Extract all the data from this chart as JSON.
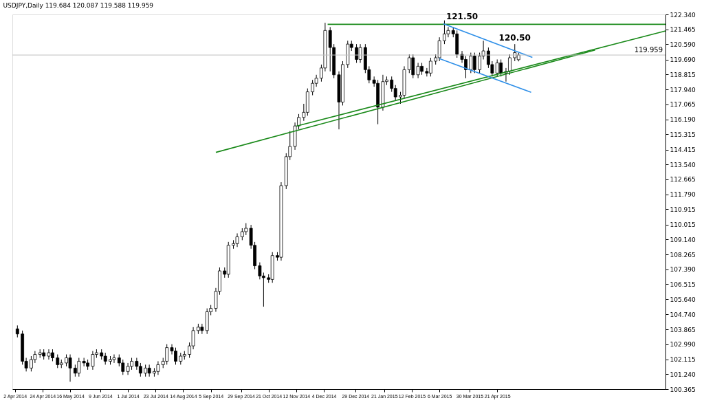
{
  "chart_data": {
    "type": "candlestick",
    "title": "USDJPY,Daily  119.684 120.087 119.588 119.959",
    "x": [
      "2014-04-04",
      "2014-04-08",
      "2014-04-11",
      "2014-04-15",
      "2014-04-18",
      "2014-04-22",
      "2014-04-25",
      "2014-04-29",
      "2014-05-02",
      "2014-05-06",
      "2014-05-09",
      "2014-05-13",
      "2014-05-16",
      "2014-05-20",
      "2014-05-23",
      "2014-05-27",
      "2014-05-30",
      "2014-06-03",
      "2014-06-06",
      "2014-06-10",
      "2014-06-13",
      "2014-06-17",
      "2014-06-20",
      "2014-06-24",
      "2014-06-27",
      "2014-07-01",
      "2014-07-04",
      "2014-07-08",
      "2014-07-11",
      "2014-07-15",
      "2014-07-18",
      "2014-07-22",
      "2014-07-25",
      "2014-07-29",
      "2014-08-01",
      "2014-08-05",
      "2014-08-08",
      "2014-08-12",
      "2014-08-15",
      "2014-08-19",
      "2014-08-22",
      "2014-08-26",
      "2014-08-29",
      "2014-09-02",
      "2014-09-05",
      "2014-09-09",
      "2014-09-12",
      "2014-09-16",
      "2014-09-19",
      "2014-09-23",
      "2014-09-26",
      "2014-09-30",
      "2014-10-03",
      "2014-10-07",
      "2014-10-10",
      "2014-10-14",
      "2014-10-17",
      "2014-10-21",
      "2014-10-24",
      "2014-10-28",
      "2014-10-31",
      "2014-11-04",
      "2014-11-07",
      "2014-11-11",
      "2014-11-14",
      "2014-11-18",
      "2014-11-21",
      "2014-11-25",
      "2014-11-28",
      "2014-12-02",
      "2014-12-05",
      "2014-12-09",
      "2014-12-12",
      "2014-12-16",
      "2014-12-19",
      "2014-12-23",
      "2014-12-26",
      "2014-12-30",
      "2015-01-02",
      "2015-01-06",
      "2015-01-09",
      "2015-01-13",
      "2015-01-16",
      "2015-01-20",
      "2015-01-23",
      "2015-01-27",
      "2015-01-30",
      "2015-02-03",
      "2015-02-06",
      "2015-02-10",
      "2015-02-13",
      "2015-02-17",
      "2015-02-20",
      "2015-02-24",
      "2015-02-27",
      "2015-03-03",
      "2015-03-06",
      "2015-03-10",
      "2015-03-13",
      "2015-03-17",
      "2015-03-20",
      "2015-03-24",
      "2015-03-27",
      "2015-03-31",
      "2015-04-03",
      "2015-04-07",
      "2015-04-10",
      "2015-04-14",
      "2015-04-17",
      "2015-04-21",
      "2015-04-24",
      "2015-04-28",
      "2015-05-01",
      "2015-05-05",
      "2015-05-08"
    ],
    "ohlc": [
      [
        103.9,
        104.1,
        103.4,
        103.6
      ],
      [
        103.6,
        103.8,
        101.8,
        102.0
      ],
      [
        102.0,
        102.2,
        101.4,
        101.6
      ],
      [
        101.6,
        102.3,
        101.4,
        102.1
      ],
      [
        102.1,
        102.6,
        101.9,
        102.4
      ],
      [
        102.4,
        102.7,
        102.2,
        102.5
      ],
      [
        102.5,
        102.7,
        102.1,
        102.3
      ],
      [
        102.3,
        102.7,
        102.1,
        102.5
      ],
      [
        102.5,
        102.7,
        102.0,
        102.2
      ],
      [
        102.2,
        102.4,
        101.6,
        101.8
      ],
      [
        101.8,
        102.1,
        101.6,
        101.9
      ],
      [
        101.9,
        102.4,
        101.7,
        102.2
      ],
      [
        102.2,
        102.4,
        100.8,
        101.6
      ],
      [
        101.6,
        101.8,
        101.1,
        101.3
      ],
      [
        101.3,
        102.2,
        101.1,
        102.0
      ],
      [
        102.0,
        102.2,
        101.7,
        101.9
      ],
      [
        101.9,
        102.1,
        101.5,
        101.7
      ],
      [
        101.7,
        102.6,
        101.5,
        102.4
      ],
      [
        102.4,
        102.7,
        102.2,
        102.5
      ],
      [
        102.5,
        102.7,
        102.1,
        102.3
      ],
      [
        102.3,
        102.5,
        101.8,
        102.0
      ],
      [
        102.0,
        102.3,
        101.8,
        102.1
      ],
      [
        102.1,
        102.4,
        101.9,
        102.2
      ],
      [
        102.2,
        102.4,
        101.7,
        101.9
      ],
      [
        101.9,
        102.1,
        101.2,
        101.4
      ],
      [
        101.4,
        101.9,
        101.2,
        101.7
      ],
      [
        101.7,
        102.2,
        101.5,
        102.0
      ],
      [
        102.0,
        102.2,
        101.5,
        101.7
      ],
      [
        101.7,
        101.9,
        101.1,
        101.3
      ],
      [
        101.3,
        101.8,
        101.1,
        101.6
      ],
      [
        101.6,
        101.8,
        101.1,
        101.3
      ],
      [
        101.3,
        101.6,
        101.1,
        101.4
      ],
      [
        101.4,
        102.0,
        101.2,
        101.8
      ],
      [
        101.8,
        102.2,
        101.6,
        102.0
      ],
      [
        102.0,
        103.0,
        101.8,
        102.8
      ],
      [
        102.8,
        103.0,
        102.4,
        102.6
      ],
      [
        102.6,
        102.8,
        101.8,
        102.0
      ],
      [
        102.0,
        102.5,
        101.8,
        102.3
      ],
      [
        102.3,
        102.6,
        102.1,
        102.4
      ],
      [
        102.4,
        103.1,
        102.2,
        102.9
      ],
      [
        102.9,
        104.0,
        102.7,
        103.8
      ],
      [
        103.8,
        104.2,
        103.6,
        104.0
      ],
      [
        104.0,
        104.2,
        103.6,
        103.8
      ],
      [
        103.8,
        105.1,
        103.6,
        104.9
      ],
      [
        104.9,
        105.3,
        104.7,
        105.1
      ],
      [
        105.1,
        106.3,
        104.9,
        106.1
      ],
      [
        106.1,
        107.5,
        105.9,
        107.3
      ],
      [
        107.3,
        107.5,
        106.9,
        107.1
      ],
      [
        107.1,
        109.0,
        106.9,
        108.8
      ],
      [
        108.8,
        109.1,
        108.6,
        108.9
      ],
      [
        108.9,
        109.5,
        108.7,
        109.3
      ],
      [
        109.3,
        109.8,
        109.1,
        109.6
      ],
      [
        109.6,
        110.1,
        109.4,
        109.8
      ],
      [
        109.8,
        110.0,
        108.6,
        108.8
      ],
      [
        108.8,
        109.0,
        107.4,
        107.6
      ],
      [
        107.6,
        107.8,
        106.8,
        107.0
      ],
      [
        107.0,
        107.2,
        105.2,
        106.9
      ],
      [
        106.9,
        107.1,
        106.6,
        106.8
      ],
      [
        106.8,
        108.4,
        106.6,
        108.2
      ],
      [
        108.2,
        108.4,
        107.9,
        108.1
      ],
      [
        108.1,
        112.5,
        107.9,
        112.3
      ],
      [
        112.3,
        114.2,
        112.1,
        114.0
      ],
      [
        114.0,
        115.5,
        113.8,
        114.6
      ],
      [
        114.6,
        116.0,
        114.4,
        115.8
      ],
      [
        115.8,
        116.5,
        115.6,
        116.3
      ],
      [
        116.3,
        117.1,
        116.1,
        116.6
      ],
      [
        116.6,
        118.0,
        116.4,
        117.8
      ],
      [
        117.8,
        118.5,
        117.6,
        118.3
      ],
      [
        118.3,
        118.8,
        118.1,
        118.6
      ],
      [
        118.6,
        119.4,
        118.4,
        119.2
      ],
      [
        119.2,
        121.85,
        119.0,
        121.4
      ],
      [
        121.4,
        121.6,
        119.0,
        120.4
      ],
      [
        120.4,
        120.6,
        118.6,
        118.8
      ],
      [
        118.8,
        119.0,
        115.6,
        117.2
      ],
      [
        117.2,
        119.6,
        117.0,
        119.4
      ],
      [
        119.4,
        120.8,
        119.2,
        120.6
      ],
      [
        120.6,
        120.8,
        120.2,
        120.4
      ],
      [
        120.4,
        120.6,
        119.5,
        119.7
      ],
      [
        119.7,
        120.6,
        119.5,
        120.4
      ],
      [
        120.4,
        120.6,
        118.9,
        119.1
      ],
      [
        119.1,
        119.3,
        118.3,
        118.5
      ],
      [
        118.5,
        118.7,
        118.1,
        118.3
      ],
      [
        118.3,
        118.5,
        115.9,
        116.9
      ],
      [
        116.9,
        118.8,
        116.7,
        118.4
      ],
      [
        118.4,
        118.7,
        118.2,
        118.5
      ],
      [
        118.5,
        118.7,
        117.8,
        118.0
      ],
      [
        118.0,
        118.2,
        117.3,
        117.5
      ],
      [
        117.5,
        117.8,
        117.1,
        117.6
      ],
      [
        117.6,
        119.3,
        117.4,
        119.1
      ],
      [
        119.1,
        120.0,
        118.9,
        119.8
      ],
      [
        119.8,
        120.0,
        118.6,
        118.8
      ],
      [
        118.8,
        119.5,
        118.6,
        119.3
      ],
      [
        119.3,
        119.5,
        118.8,
        119.0
      ],
      [
        119.0,
        119.2,
        118.7,
        118.9
      ],
      [
        118.9,
        119.8,
        118.7,
        119.6
      ],
      [
        119.6,
        120.0,
        119.4,
        119.8
      ],
      [
        119.8,
        121.0,
        119.6,
        120.8
      ],
      [
        120.8,
        121.99,
        120.6,
        121.2
      ],
      [
        121.2,
        121.6,
        121.0,
        121.4
      ],
      [
        121.4,
        121.6,
        121.0,
        121.2
      ],
      [
        121.2,
        121.4,
        119.8,
        120.0
      ],
      [
        120.0,
        120.2,
        119.5,
        119.7
      ],
      [
        119.7,
        119.9,
        118.6,
        119.1
      ],
      [
        119.1,
        120.1,
        118.9,
        119.9
      ],
      [
        119.9,
        120.1,
        118.9,
        119.1
      ],
      [
        119.1,
        120.1,
        118.9,
        119.9
      ],
      [
        119.9,
        120.8,
        119.7,
        120.2
      ],
      [
        120.2,
        120.4,
        119.2,
        119.4
      ],
      [
        119.4,
        119.6,
        118.7,
        118.9
      ],
      [
        118.9,
        119.7,
        118.7,
        119.5
      ],
      [
        119.5,
        119.7,
        118.7,
        118.9
      ],
      [
        118.9,
        119.2,
        118.4,
        119.0
      ],
      [
        119.0,
        120.0,
        118.8,
        119.8
      ],
      [
        119.8,
        120.6,
        119.6,
        120.1
      ],
      [
        119.684,
        120.087,
        119.588,
        119.959
      ]
    ],
    "series": [
      {
        "type": "line",
        "color": "#1a8a1a",
        "x": [
          "2014-12-07",
          "2015-09-02"
        ],
        "values": [
          121.76,
          121.76
        ]
      },
      {
        "type": "line",
        "color": "#1a8a1a",
        "x": [
          "2014-09-09",
          "2015-07-08"
        ],
        "values": [
          114.25,
          120.25
        ]
      },
      {
        "type": "line",
        "color": "#1a8a1a",
        "x": [
          "2014-11-12",
          "2015-09-02"
        ],
        "values": [
          115.79,
          121.37
        ]
      },
      {
        "type": "line",
        "color": "#2e8fe8",
        "x": [
          "2015-03-09",
          "2015-05-19"
        ],
        "values": [
          121.8,
          119.82
        ]
      },
      {
        "type": "line",
        "color": "#2e8fe8",
        "x": [
          "2015-03-06",
          "2015-05-18"
        ],
        "values": [
          119.75,
          117.77
        ]
      }
    ],
    "annotations": [
      {
        "text": "121.50",
        "x": "2015-03-24",
        "y": 121.95
      },
      {
        "text": "120.50",
        "x": "2015-05-05",
        "y": 120.7
      }
    ],
    "ref_lines": [
      {
        "axis": "y",
        "value": 119.959,
        "label": "119.959",
        "color": "#c0c0c0"
      }
    ],
    "xlim": [
      "2014-03-31",
      "2015-09-02"
    ],
    "xticks": [
      {
        "value": "2014-04-02",
        "label": "2 Apr 2014"
      },
      {
        "value": "2014-04-24",
        "label": "24 Apr 2014"
      },
      {
        "value": "2014-05-16",
        "label": "16 May 2014"
      },
      {
        "value": "2014-06-09",
        "label": "9 Jun 2014"
      },
      {
        "value": "2014-07-01",
        "label": "1 Jul 2014"
      },
      {
        "value": "2014-07-23",
        "label": "23 Jul 2014"
      },
      {
        "value": "2014-08-14",
        "label": "14 Aug 2014"
      },
      {
        "value": "2014-09-05",
        "label": "5 Sep 2014"
      },
      {
        "value": "2014-09-29",
        "label": "29 Sep 2014"
      },
      {
        "value": "2014-10-21",
        "label": "21 Oct 2014"
      },
      {
        "value": "2014-11-12",
        "label": "12 Nov 2014"
      },
      {
        "value": "2014-12-04",
        "label": "4 Dec 2014"
      },
      {
        "value": "2014-12-29",
        "label": "29 Dec 2014"
      },
      {
        "value": "2015-01-21",
        "label": "21 Jan 2015"
      },
      {
        "value": "2015-02-12",
        "label": "12 Feb 2015"
      },
      {
        "value": "2015-03-06",
        "label": "6 Mar 2015"
      },
      {
        "value": "2015-03-30",
        "label": "30 Mar 2015"
      },
      {
        "value": "2015-04-21",
        "label": "21 Apr 2015"
      }
    ],
    "ylim": [
      100.365,
      122.34
    ],
    "yticks": [
      {
        "value": 122.34,
        "label": "122.340"
      },
      {
        "value": 121.465,
        "label": "121.465"
      },
      {
        "value": 120.59,
        "label": "120.590"
      },
      {
        "value": 119.69,
        "label": "119.690"
      },
      {
        "value": 118.815,
        "label": "118.815"
      },
      {
        "value": 117.94,
        "label": "117.940"
      },
      {
        "value": 117.065,
        "label": "117.065"
      },
      {
        "value": 116.19,
        "label": "116.190"
      },
      {
        "value": 115.315,
        "label": "115.315"
      },
      {
        "value": 114.415,
        "label": "114.415"
      },
      {
        "value": 113.54,
        "label": "113.540"
      },
      {
        "value": 112.665,
        "label": "112.665"
      },
      {
        "value": 111.79,
        "label": "111.790"
      },
      {
        "value": 110.915,
        "label": "110.915"
      },
      {
        "value": 110.015,
        "label": "110.015"
      },
      {
        "value": 109.14,
        "label": "109.140"
      },
      {
        "value": 108.265,
        "label": "108.265"
      },
      {
        "value": 107.39,
        "label": "107.390"
      },
      {
        "value": 106.515,
        "label": "106.515"
      },
      {
        "value": 105.64,
        "label": "105.640"
      },
      {
        "value": 104.74,
        "label": "104.740"
      },
      {
        "value": 103.865,
        "label": "103.865"
      },
      {
        "value": 102.99,
        "label": "102.990"
      },
      {
        "value": 102.115,
        "label": "102.115"
      },
      {
        "value": 101.24,
        "label": "101.240"
      },
      {
        "value": 100.365,
        "label": "100.365"
      }
    ],
    "grid": false
  }
}
